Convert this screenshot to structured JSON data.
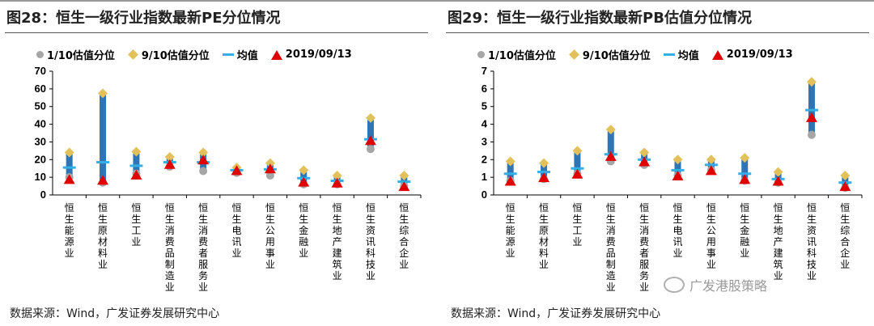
{
  "left": {
    "title": "图28：恒生一级行业指数最新PE分位情况",
    "legend": {
      "p10": "1/10估值分位",
      "p90": "9/10估值分位",
      "mean": "均值",
      "latest": "2019/09/13"
    },
    "source": "数据来源：Wind，广发证券发展研究中心"
  },
  "right": {
    "title": "图29：恒生一级行业指数最新PB估值分位情况",
    "legend": {
      "p10": "1/10估值分位",
      "p90": "9/10估值分位",
      "mean": "均值",
      "latest": "2019/09/13"
    },
    "source": "数据来源：Wind，广发证券发展研究中心"
  },
  "watermark": "广发港股策略",
  "colors": {
    "bar": "#2e75b6",
    "p10": "#a6a6a6",
    "p90": "#e2c15b",
    "mean": "#33aee6",
    "latest": "#e00000"
  },
  "chart_data": [
    {
      "type": "bar",
      "title": "图28：恒生一级行业指数最新PE分位情况",
      "categories": [
        "恒生能源业",
        "恒生原材料业",
        "恒生工业",
        "恒生消费品制造业",
        "恒生消费者服务业",
        "恒生电讯业",
        "恒生公用事业",
        "恒生金融业",
        "恒生地产建筑业",
        "恒生资讯科技业",
        "恒生综合企业"
      ],
      "ylim": [
        0,
        70
      ],
      "yticks": [
        0,
        10,
        20,
        30,
        40,
        50,
        60,
        70
      ],
      "series": [
        {
          "name": "1/10估值分位",
          "values": [
            10,
            7,
            12,
            16,
            13.5,
            12.5,
            11,
            6,
            6,
            26,
            5
          ]
        },
        {
          "name": "9/10估值分位",
          "values": [
            24,
            57.5,
            24.5,
            21.5,
            24,
            15.5,
            18,
            14,
            11,
            43.5,
            11
          ]
        },
        {
          "name": "均值",
          "values": [
            15.5,
            18.5,
            16.5,
            18.5,
            18.5,
            14,
            14.5,
            9.5,
            8,
            31.5,
            7.5
          ]
        },
        {
          "name": "2019/09/13",
          "values": [
            9,
            8.5,
            11.5,
            17.5,
            20,
            14,
            15,
            7.5,
            7,
            31,
            5
          ]
        }
      ]
    },
    {
      "type": "bar",
      "title": "图29：恒生一级行业指数最新PB估值分位情况",
      "categories": [
        "恒生能源业",
        "恒生原材料业",
        "恒生工业",
        "恒生消费品制造业",
        "恒生消费者服务业",
        "恒生电讯业",
        "恒生公用事业",
        "恒生金融业",
        "恒生地产建筑业",
        "恒生资讯科技业",
        "恒生综合企业"
      ],
      "ylim": [
        0,
        7
      ],
      "yticks": [
        0,
        1,
        2,
        3,
        4,
        5,
        6,
        7
      ],
      "series": [
        {
          "name": "1/10估值分位",
          "values": [
            0.8,
            0.9,
            1.2,
            1.9,
            1.7,
            1.1,
            1.4,
            0.8,
            0.7,
            3.4,
            0.4
          ]
        },
        {
          "name": "9/10估值分位",
          "values": [
            1.9,
            1.8,
            2.5,
            3.7,
            2.4,
            2.0,
            2.0,
            2.1,
            1.3,
            6.4,
            1.1
          ]
        },
        {
          "name": "均值",
          "values": [
            1.2,
            1.3,
            1.5,
            2.3,
            2.0,
            1.4,
            1.7,
            1.2,
            0.9,
            4.8,
            0.7
          ]
        },
        {
          "name": "2019/09/13",
          "values": [
            0.8,
            1.0,
            1.2,
            2.2,
            1.9,
            1.1,
            1.4,
            0.9,
            0.8,
            4.4,
            0.5
          ]
        }
      ]
    }
  ]
}
